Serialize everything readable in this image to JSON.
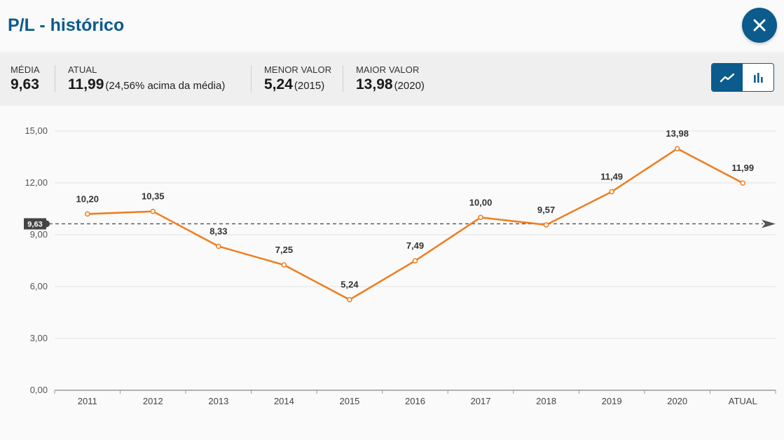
{
  "header": {
    "title": "P/L - histórico"
  },
  "stats": {
    "media": {
      "label": "MÉDIA",
      "value": "9,63"
    },
    "atual": {
      "label": "ATUAL",
      "value": "11,99",
      "note": "(24,56% acima da média)"
    },
    "menor": {
      "label": "MENOR VALOR",
      "value": "5,24",
      "note": "(2015)"
    },
    "maior": {
      "label": "MAIOR VALOR",
      "value": "13,98",
      "note": "(2020)"
    }
  },
  "toggle": {
    "options": [
      "line-chart-icon",
      "bar-chart-icon"
    ],
    "active": "line-chart-icon"
  },
  "colors": {
    "accent": "#0b5b8c",
    "line": "#f07d1e",
    "average": "#555555"
  },
  "chart_data": {
    "type": "line",
    "categories": [
      "2011",
      "2012",
      "2013",
      "2014",
      "2015",
      "2016",
      "2017",
      "2018",
      "2019",
      "2020",
      "ATUAL"
    ],
    "values": [
      10.2,
      10.35,
      8.33,
      7.25,
      5.24,
      7.49,
      10.0,
      9.57,
      11.49,
      13.98,
      11.99
    ],
    "value_labels": [
      "10,20",
      "10,35",
      "8,33",
      "7,25",
      "5,24",
      "7,49",
      "10,00",
      "9,57",
      "11,49",
      "13,98",
      "11,99"
    ],
    "y_ticks": [
      0,
      3,
      6,
      9,
      12,
      15
    ],
    "y_tick_labels": [
      "0,00",
      "3,00",
      "6,00",
      "9,00",
      "12,00",
      "15,00"
    ],
    "ylim": [
      0,
      15
    ],
    "average": 9.63,
    "average_label": "9,63",
    "grid": true
  }
}
